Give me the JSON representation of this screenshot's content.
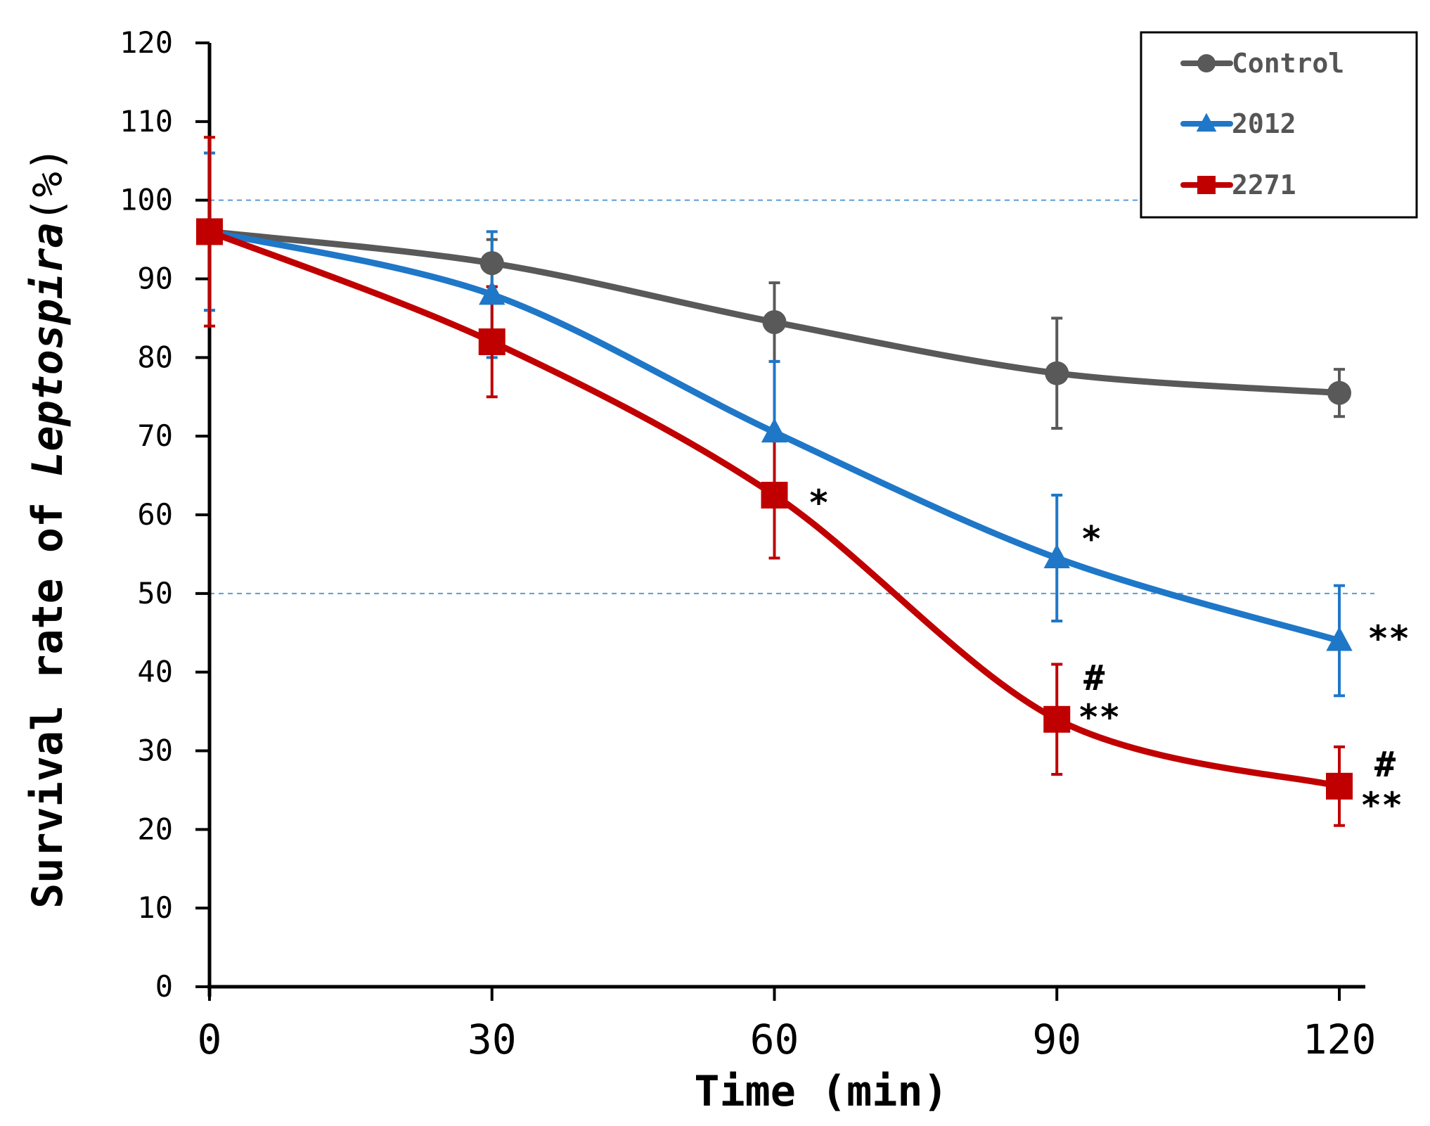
{
  "chart_data": {
    "type": "line",
    "title": "",
    "xlabel": "Time (min)",
    "ylabel_prefix": "Survival rate of ",
    "ylabel_italic": "Leptospira",
    "ylabel_suffix": "(%)",
    "x": [
      0,
      30,
      60,
      90,
      120
    ],
    "xticks": [
      0,
      30,
      60,
      90,
      120
    ],
    "yticks": [
      0,
      10,
      20,
      30,
      40,
      50,
      60,
      70,
      80,
      90,
      100,
      110,
      120
    ],
    "xlim": [
      0,
      120
    ],
    "ylim": [
      0,
      120
    ],
    "reference_lines": [
      100,
      50
    ],
    "legend_position": "top-right",
    "series": [
      {
        "name": "Control",
        "marker": "circle",
        "color": "#595959",
        "values": [
          96,
          92,
          84.5,
          78,
          75.5
        ],
        "errors": [
          10,
          3,
          5,
          7,
          3
        ]
      },
      {
        "name": "2012",
        "marker": "triangle",
        "color": "#1F77C8",
        "values": [
          96,
          88,
          70.5,
          54.5,
          44
        ],
        "errors": [
          10,
          8,
          9,
          8,
          7
        ]
      },
      {
        "name": "2271",
        "marker": "square",
        "color": "#C00000",
        "values": [
          96,
          82,
          62.5,
          34,
          25.5
        ],
        "errors": [
          12,
          7,
          8,
          7,
          5
        ]
      }
    ],
    "annotations": [
      {
        "series": "2271",
        "x": 60,
        "text": "*"
      },
      {
        "series": "2012",
        "x": 90,
        "text": "*"
      },
      {
        "series": "2012",
        "x": 120,
        "text": "**"
      },
      {
        "series": "2271",
        "x": 90,
        "text": "#"
      },
      {
        "series": "2271",
        "x": 90,
        "text": "**"
      },
      {
        "series": "2271",
        "x": 120,
        "text": "#"
      },
      {
        "series": "2271",
        "x": 120,
        "text": "**"
      }
    ]
  }
}
